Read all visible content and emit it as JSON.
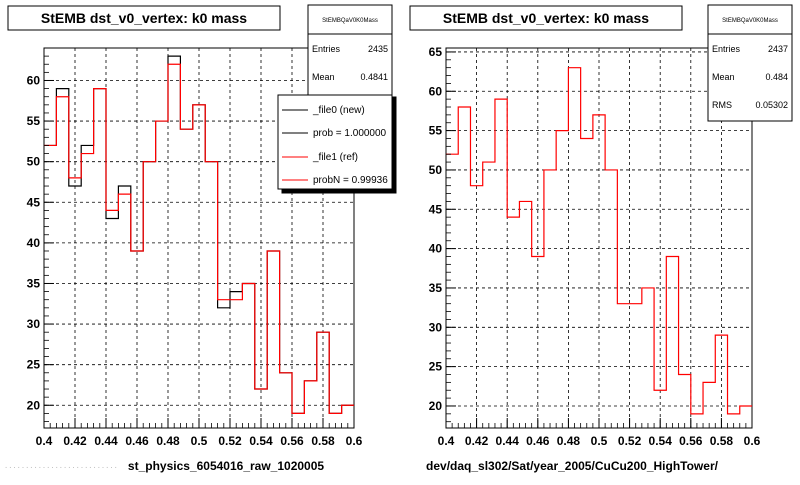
{
  "chart_data": [
    {
      "type": "histogram",
      "title": "StEMB dst_v0_vertex: k0 mass",
      "xlabel": "st_physics_6054016_raw_1020005",
      "xlim": [
        0.4,
        0.6
      ],
      "ylim": [
        17.2,
        64
      ],
      "x_ticks": [
        "0.4",
        "0.42",
        "0.44",
        "0.46",
        "0.48",
        "0.5",
        "0.52",
        "0.54",
        "0.56",
        "0.58",
        "0.6"
      ],
      "y_ticks": [
        20,
        25,
        30,
        35,
        40,
        45,
        50,
        55,
        60
      ],
      "grid": true,
      "bin_edges": [
        0.4,
        0.408,
        0.416,
        0.424,
        0.432,
        0.44,
        0.448,
        0.456,
        0.464,
        0.472,
        0.48,
        0.488,
        0.496,
        0.504,
        0.512,
        0.52,
        0.528,
        0.536,
        0.544,
        0.552,
        0.56,
        0.568,
        0.576,
        0.584,
        0.592,
        0.6
      ],
      "series": [
        {
          "name": "_file0 (new)",
          "color": "#000000",
          "values": [
            52,
            59,
            47,
            52,
            59,
            43,
            47,
            39,
            50,
            55,
            63,
            54,
            57,
            50,
            32,
            34,
            35,
            22,
            39,
            24,
            19,
            23,
            29,
            19,
            20
          ]
        },
        {
          "name": "_file1 (ref)",
          "color": "#ff0000",
          "values": [
            52,
            58,
            48,
            51,
            59,
            44,
            46,
            39,
            50,
            55,
            62,
            54,
            57,
            50,
            33,
            33,
            35,
            22,
            39,
            24,
            19,
            23,
            29,
            19,
            20
          ]
        }
      ],
      "stats": {
        "name": "StEMBQaV0K0Mass",
        "rows": [
          {
            "label": "Entries",
            "value": "2435"
          },
          {
            "label": "Mean",
            "value": "0.4841"
          }
        ]
      },
      "legend": {
        "placement": "top-right",
        "entries": [
          {
            "label": "_file0 (new)",
            "color": "#000000"
          },
          {
            "label": "prob = 1.000000",
            "color": "#000000"
          },
          {
            "label": "_file1 (ref)",
            "color": "#ff0000"
          },
          {
            "label": "probN = 0.99936",
            "color": "#ff0000"
          }
        ]
      }
    },
    {
      "type": "histogram",
      "title": "StEMB dst_v0_vertex: k0 mass",
      "xlabel": "dev/daq_sl302/Sat/year_2005/CuCu200_HighTower/",
      "xlim": [
        0.4,
        0.6
      ],
      "ylim": [
        17.2,
        65.5
      ],
      "x_ticks": [
        "0.4",
        "0.42",
        "0.44",
        "0.46",
        "0.48",
        "0.5",
        "0.52",
        "0.54",
        "0.56",
        "0.58",
        "0.6"
      ],
      "y_ticks": [
        20,
        25,
        30,
        35,
        40,
        45,
        50,
        55,
        60,
        65
      ],
      "grid": true,
      "bin_edges": [
        0.4,
        0.408,
        0.416,
        0.424,
        0.432,
        0.44,
        0.448,
        0.456,
        0.464,
        0.472,
        0.48,
        0.488,
        0.496,
        0.504,
        0.512,
        0.52,
        0.528,
        0.536,
        0.544,
        0.552,
        0.56,
        0.568,
        0.576,
        0.584,
        0.592,
        0.6
      ],
      "series": [
        {
          "color": "#ff0000",
          "values": [
            52,
            58,
            48,
            51,
            59,
            44,
            46,
            39,
            50,
            55,
            63,
            54,
            57,
            50,
            33,
            33,
            35,
            22,
            39,
            24,
            19,
            23,
            29,
            19,
            20
          ]
        }
      ],
      "stats": {
        "name": "StEMBQaV0K0Mass",
        "rows": [
          {
            "label": "Entries",
            "value": "2437"
          },
          {
            "label": "Mean",
            "value": "0.484"
          },
          {
            "label": "RMS",
            "value": "0.05302"
          }
        ]
      }
    }
  ]
}
